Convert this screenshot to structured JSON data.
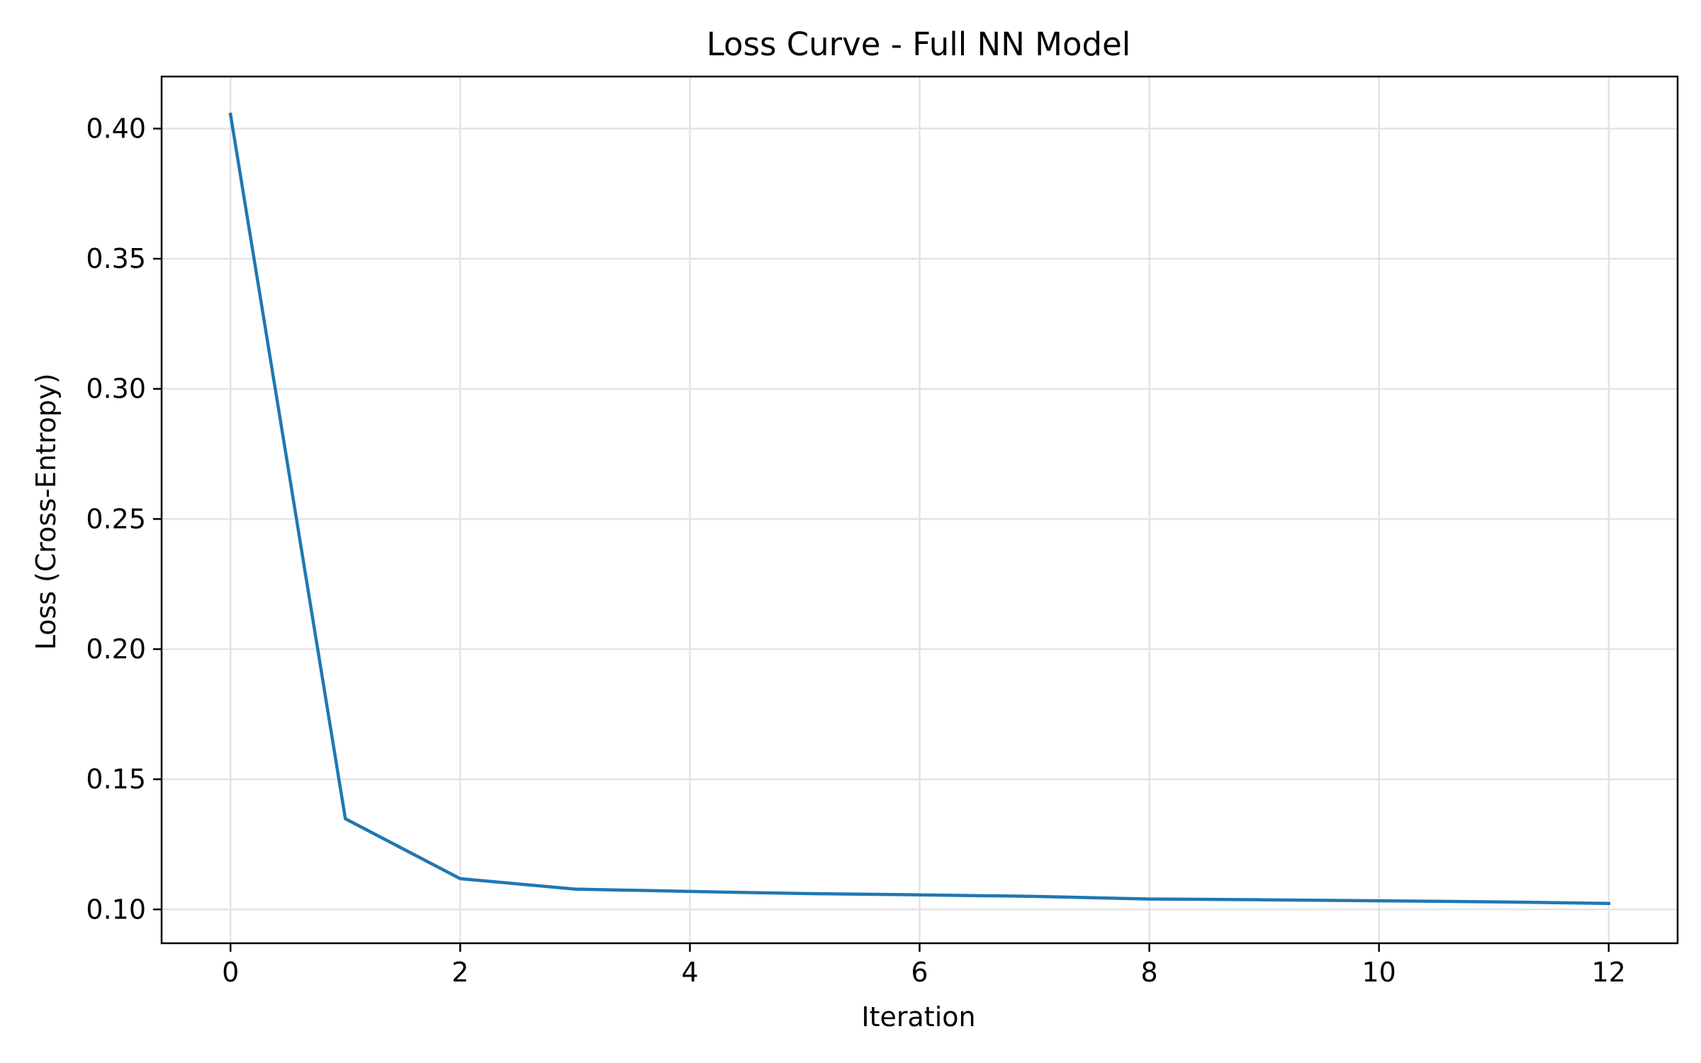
{
  "chart_data": {
    "type": "line",
    "title": "Loss Curve - Full NN Model",
    "xlabel": "Iteration",
    "ylabel": "Loss (Cross-Entropy)",
    "xlim": [
      -0.6,
      12.6
    ],
    "ylim": [
      0.087,
      0.42
    ],
    "xticks": [
      0,
      2,
      4,
      6,
      8,
      10,
      12
    ],
    "xtick_labels": [
      "0",
      "2",
      "4",
      "6",
      "8",
      "10",
      "12"
    ],
    "yticks": [
      0.1,
      0.15,
      0.2,
      0.25,
      0.3,
      0.35,
      0.4
    ],
    "ytick_labels": [
      "0.10",
      "0.15",
      "0.20",
      "0.25",
      "0.30",
      "0.35",
      "0.40"
    ],
    "grid": true,
    "series": [
      {
        "color": "#1f77b4",
        "x": [
          0,
          1,
          2,
          3,
          4,
          5,
          6,
          7,
          8,
          9,
          10,
          11,
          12
        ],
        "y": [
          0.4055,
          0.1348,
          0.1118,
          0.1078,
          0.1069,
          0.1061,
          0.1056,
          0.105,
          0.104,
          0.1037,
          0.1033,
          0.1029,
          0.1023
        ]
      }
    ]
  }
}
